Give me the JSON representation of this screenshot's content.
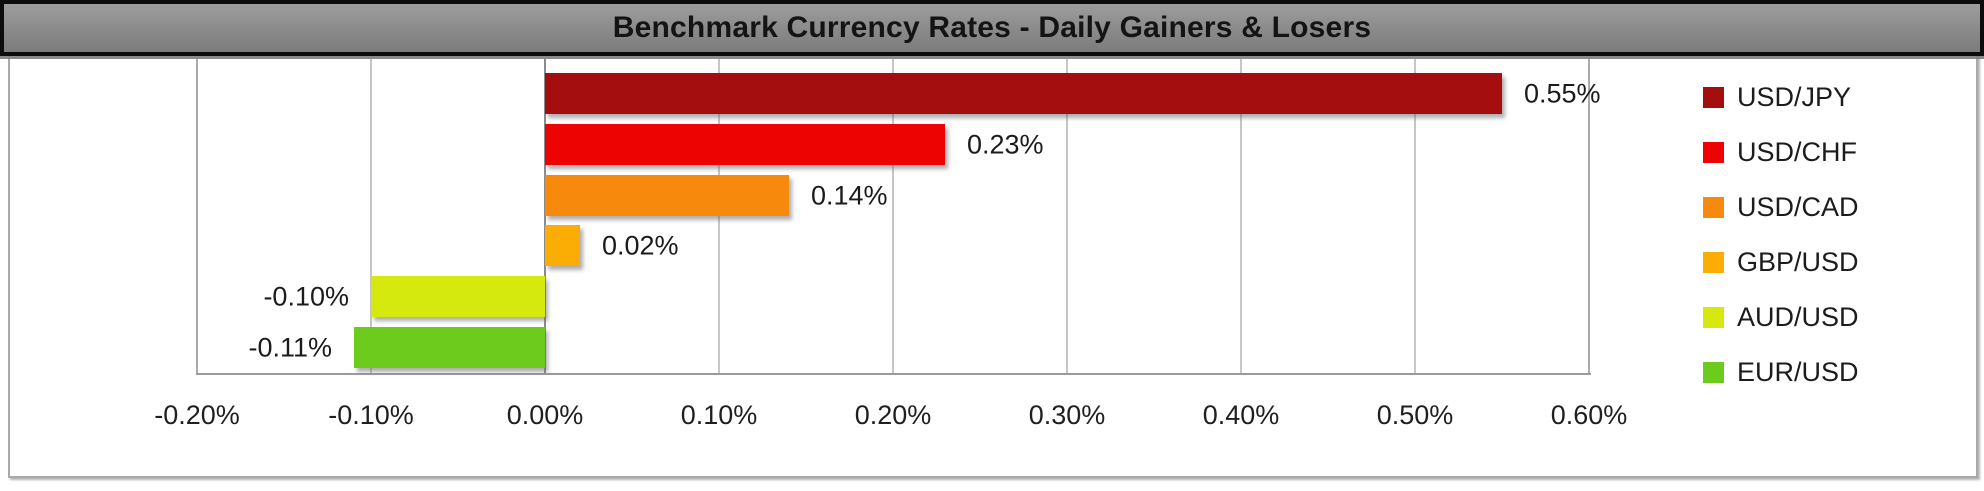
{
  "title_bar": {
    "text": "Benchmark Currency Rates - Daily Gainers & Losers"
  },
  "chart_data": {
    "type": "bar",
    "orientation": "horizontal",
    "title": "Benchmark Currency Rates - Daily Gainers & Losers",
    "categories": [
      "USD/JPY",
      "USD/CHF",
      "USD/CAD",
      "GBP/USD",
      "AUD/USD",
      "EUR/USD"
    ],
    "values": [
      0.55,
      0.23,
      0.14,
      0.02,
      -0.1,
      -0.11
    ],
    "value_labels": [
      "0.55%",
      "0.23%",
      "0.14%",
      "0.02%",
      "-0.10%",
      "-0.11%"
    ],
    "bar_colors": [
      "#a40e0e",
      "#ee0303",
      "#f78a0d",
      "#fbac05",
      "#d6e90f",
      "#6dcb1e"
    ],
    "x_ticks": [
      {
        "label": "-0.20%",
        "value": -0.2
      },
      {
        "label": "-0.10%",
        "value": -0.1
      },
      {
        "label": "0.00%",
        "value": 0.0
      },
      {
        "label": "0.10%",
        "value": 0.1
      },
      {
        "label": "0.20%",
        "value": 0.2
      },
      {
        "label": "0.30%",
        "value": 0.3
      },
      {
        "label": "0.40%",
        "value": 0.4
      },
      {
        "label": "0.50%",
        "value": 0.5
      },
      {
        "label": "0.60%",
        "value": 0.6
      }
    ],
    "xlim": [
      -0.2,
      0.6
    ],
    "grid": true,
    "legend_position": "right",
    "legend": [
      {
        "label": "USD/JPY",
        "color": "#a40e0e"
      },
      {
        "label": "USD/CHF",
        "color": "#ee0303"
      },
      {
        "label": "USD/CAD",
        "color": "#f78a0d"
      },
      {
        "label": "GBP/USD",
        "color": "#fbac05"
      },
      {
        "label": "AUD/USD",
        "color": "#d6e90f"
      },
      {
        "label": "EUR/USD",
        "color": "#6dcb1e"
      }
    ]
  }
}
